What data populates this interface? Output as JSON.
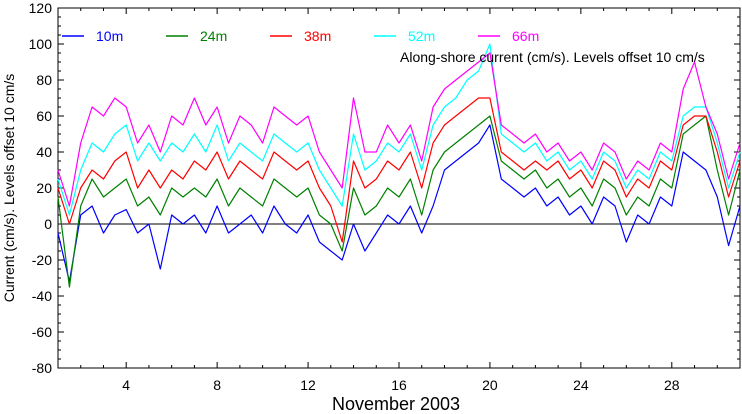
{
  "chart_data": {
    "type": "line",
    "title": "",
    "xlabel": "November 2003",
    "ylabel": "Current (cm/s). Levels offset 10 cm/s",
    "annotation": "Along-shore current (cm/s). Levels offset 10 cm/s",
    "xlim": [
      1,
      31
    ],
    "ylim": [
      -80,
      120
    ],
    "grid": false,
    "legend_position": "top-left",
    "x_ticks": [
      4,
      8,
      12,
      16,
      20,
      24,
      28
    ],
    "x_tick_labels": [
      "4",
      "8",
      "12",
      "16",
      "20",
      "24",
      "28"
    ],
    "y_ticks": [
      -80,
      -60,
      -40,
      -20,
      0,
      20,
      40,
      60,
      80,
      100,
      120
    ],
    "y_tick_labels": [
      "-80",
      "-60",
      "-40",
      "-20",
      "0",
      "20",
      "40",
      "60",
      "80",
      "100",
      "120"
    ],
    "zero_line": 0,
    "x": [
      1.0,
      1.5,
      2.0,
      2.5,
      3.0,
      3.5,
      4.0,
      4.5,
      5.0,
      5.5,
      6.0,
      6.5,
      7.0,
      7.5,
      8.0,
      8.5,
      9.0,
      9.5,
      10.0,
      10.5,
      11.0,
      11.5,
      12.0,
      12.5,
      13.0,
      13.5,
      14.0,
      14.5,
      15.0,
      15.5,
      16.0,
      16.5,
      17.0,
      17.5,
      18.0,
      18.5,
      19.0,
      19.5,
      20.0,
      20.5,
      21.0,
      21.5,
      22.0,
      22.5,
      23.0,
      23.5,
      24.0,
      24.5,
      25.0,
      25.5,
      26.0,
      26.5,
      27.0,
      27.5,
      28.0,
      28.5,
      29.0,
      29.5,
      30.0,
      30.5,
      31.0
    ],
    "series": [
      {
        "name": "10m",
        "color": "#0000ff",
        "values": [
          -5,
          -32,
          5,
          10,
          -5,
          5,
          8,
          -5,
          0,
          -25,
          5,
          0,
          5,
          -5,
          10,
          -5,
          0,
          5,
          -5,
          10,
          0,
          -5,
          5,
          -10,
          -15,
          -20,
          0,
          -15,
          -5,
          5,
          0,
          10,
          -5,
          10,
          30,
          35,
          40,
          45,
          55,
          25,
          20,
          15,
          20,
          10,
          15,
          5,
          10,
          0,
          15,
          10,
          -10,
          5,
          0,
          15,
          10,
          40,
          35,
          30,
          15,
          -12,
          10
        ]
      },
      {
        "name": "24m",
        "color": "#008000",
        "values": [
          15,
          -35,
          10,
          25,
          15,
          20,
          25,
          10,
          15,
          5,
          20,
          15,
          20,
          15,
          25,
          10,
          20,
          15,
          10,
          25,
          20,
          15,
          20,
          5,
          0,
          -15,
          20,
          5,
          10,
          20,
          15,
          25,
          5,
          30,
          40,
          45,
          50,
          55,
          60,
          35,
          30,
          25,
          30,
          20,
          25,
          15,
          20,
          10,
          25,
          20,
          5,
          15,
          10,
          25,
          20,
          50,
          55,
          60,
          30,
          5,
          30
        ]
      },
      {
        "name": "38m",
        "color": "#ff0000",
        "values": [
          20,
          0,
          20,
          30,
          25,
          35,
          40,
          20,
          30,
          20,
          30,
          25,
          35,
          30,
          40,
          25,
          35,
          30,
          25,
          40,
          35,
          30,
          35,
          20,
          10,
          -10,
          35,
          20,
          25,
          35,
          30,
          40,
          20,
          45,
          55,
          60,
          65,
          70,
          70,
          40,
          35,
          30,
          35,
          30,
          35,
          25,
          30,
          20,
          35,
          30,
          15,
          25,
          20,
          35,
          30,
          55,
          60,
          60,
          40,
          15,
          35
        ]
      },
      {
        "name": "52m",
        "color": "#00ffff",
        "values": [
          25,
          5,
          30,
          45,
          40,
          50,
          55,
          35,
          45,
          35,
          45,
          40,
          50,
          40,
          55,
          35,
          45,
          40,
          35,
          50,
          45,
          40,
          45,
          30,
          20,
          10,
          50,
          30,
          35,
          45,
          40,
          50,
          30,
          55,
          65,
          70,
          80,
          85,
          100,
          50,
          45,
          40,
          45,
          35,
          40,
          30,
          35,
          25,
          40,
          35,
          20,
          30,
          25,
          40,
          35,
          60,
          65,
          65,
          45,
          20,
          40
        ]
      },
      {
        "name": "66m",
        "color": "#ff00ff",
        "values": [
          30,
          10,
          45,
          65,
          60,
          70,
          65,
          45,
          55,
          40,
          60,
          55,
          70,
          55,
          65,
          45,
          60,
          55,
          45,
          65,
          60,
          55,
          60,
          40,
          30,
          20,
          70,
          40,
          40,
          55,
          45,
          55,
          35,
          65,
          75,
          80,
          85,
          90,
          95,
          55,
          50,
          45,
          50,
          40,
          45,
          35,
          40,
          30,
          45,
          40,
          25,
          35,
          30,
          45,
          40,
          75,
          90,
          65,
          50,
          25,
          45
        ]
      }
    ]
  }
}
